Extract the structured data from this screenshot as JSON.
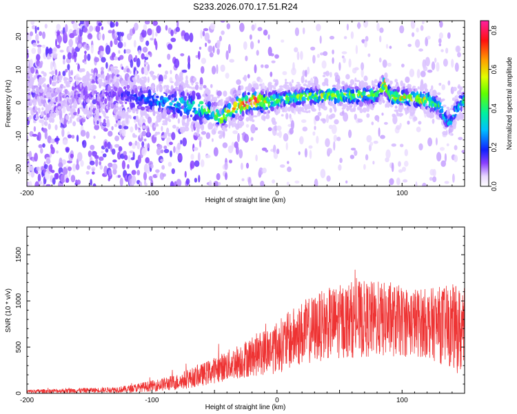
{
  "chart_data": [
    {
      "type": "heatmap",
      "title": "S233.2026.070.17.51.R24",
      "xlabel": "Height of straight line (km)",
      "ylabel": "Frequency (Hz)",
      "xlim": [
        -200,
        150
      ],
      "ylim": [
        -25,
        25
      ],
      "xticks": [
        -200,
        -100,
        0,
        100
      ],
      "yticks": [
        -20,
        -10,
        0,
        10,
        20
      ],
      "xtick_labels": [
        "-200",
        "-100",
        "0",
        "100"
      ],
      "ytick_labels": [
        "-20",
        "-10",
        "0",
        "10",
        "20"
      ],
      "ridge": {
        "x": [
          -200,
          -180,
          -160,
          -140,
          -120,
          -100,
          -80,
          -60,
          -50,
          -44,
          -40,
          -35,
          -30,
          -25,
          -20,
          -15,
          -10,
          -5,
          0,
          20,
          40,
          60,
          80,
          86,
          88,
          92,
          100,
          110,
          120,
          130,
          138,
          142,
          146,
          150
        ],
        "freq": [
          3,
          2.5,
          2,
          2.5,
          2,
          1,
          0,
          -1.5,
          -3,
          -4,
          -3,
          -1.5,
          -0.5,
          0,
          0.5,
          1,
          0.5,
          0.5,
          1,
          2,
          2.5,
          2.5,
          2.5,
          6.5,
          4,
          2,
          2,
          1.5,
          1,
          -1,
          -6,
          -3,
          0,
          1
        ],
        "peak": [
          0.05,
          0.06,
          0.07,
          0.1,
          0.15,
          0.25,
          0.3,
          0.45,
          0.55,
          0.6,
          0.6,
          0.7,
          0.8,
          0.85,
          0.8,
          0.85,
          0.6,
          0.5,
          0.45,
          0.5,
          0.55,
          0.55,
          0.5,
          0.65,
          0.6,
          0.55,
          0.6,
          0.55,
          0.6,
          0.45,
          0.3,
          0.35,
          0.4,
          0.35
        ]
      }
    },
    {
      "type": "line",
      "color": "#ee3333",
      "xlabel": "Height of straight line (km)",
      "ylabel": "SNR (10 * v/v)",
      "xlim": [
        -200,
        150
      ],
      "ylim": [
        0,
        1800
      ],
      "xticks": [
        -200,
        -100,
        0,
        100
      ],
      "yticks": [
        0,
        500,
        1000,
        1500
      ],
      "xtick_labels": [
        "-200",
        "-100",
        "0",
        "100"
      ],
      "ytick_labels": [
        "0",
        "500",
        "1000",
        "1500"
      ],
      "envelope": {
        "x": [
          -200,
          -180,
          -160,
          -140,
          -120,
          -100,
          -80,
          -60,
          -40,
          -20,
          0,
          20,
          40,
          60,
          80,
          100,
          120,
          140,
          150
        ],
        "mean": [
          20,
          25,
          30,
          35,
          45,
          80,
          120,
          200,
          300,
          400,
          500,
          650,
          750,
          800,
          800,
          780,
          760,
          720,
          650
        ],
        "spread": [
          20,
          20,
          25,
          25,
          35,
          55,
          80,
          110,
          150,
          200,
          260,
          320,
          350,
          380,
          380,
          350,
          340,
          420,
          450
        ]
      }
    }
  ],
  "colorbar": {
    "label": "Normalized spectral amplitude",
    "range": [
      0,
      0.85
    ],
    "ticks": [
      0.0,
      0.2,
      0.4,
      0.6,
      0.8
    ],
    "tick_labels": [
      "0.0",
      "0.2",
      "0.4",
      "0.6",
      "0.8"
    ]
  }
}
